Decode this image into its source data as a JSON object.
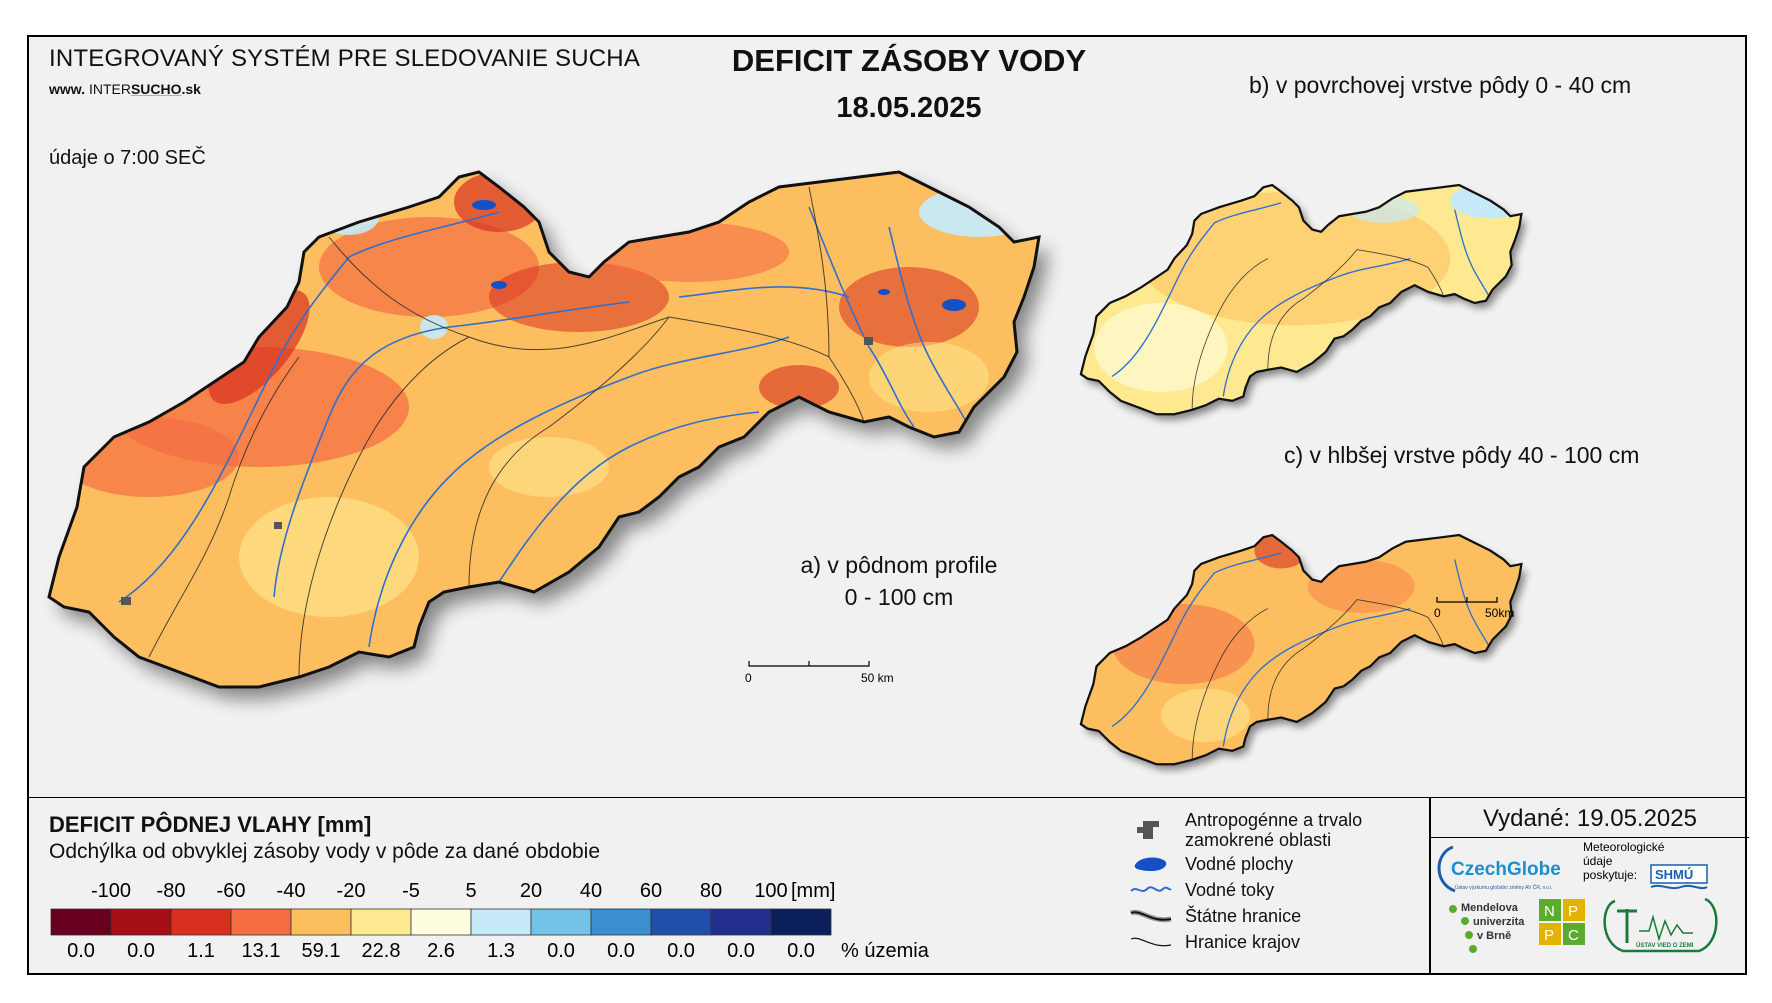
{
  "header": {
    "system_title": "INTEGROVANÝ SYSTÉM PRE SLEDOVANIE SUCHA",
    "website_prefix": "www.",
    "website_main": "INTER",
    "website_accent": "SUCHO",
    "website_suffix": ".sk",
    "time_note": "údaje o 7:00 SEČ",
    "main_title": "DEFICIT ZÁSOBY VODY",
    "date": "18.05.2025"
  },
  "panels": {
    "a_label_line1": "a) v pôdnom profile",
    "a_label_line2": "0 - 100 cm",
    "b_label": "b) v povrchovej vrstve pôdy 0 - 40 cm",
    "c_label": "c) v hlbšej vrstve pôdy 40 - 100 cm"
  },
  "scalebars": {
    "main": {
      "start": "0",
      "end": "50 km"
    },
    "small": {
      "start": "0",
      "end": "50km"
    }
  },
  "legend": {
    "title": "DEFICIT PÔDNEJ VLAHY [mm]",
    "subtitle": "Odchýlka od obvyklej zásoby vody v pôde za dané obdobie",
    "unit": "[mm]",
    "percent_label": "% územia",
    "breaks": [
      "-100",
      "-80",
      "-60",
      "-40",
      "-20",
      "-5",
      "5",
      "20",
      "40",
      "60",
      "80",
      "100"
    ],
    "classes": [
      {
        "color": "#67001f",
        "percent": "0.0"
      },
      {
        "color": "#a50f15",
        "percent": "0.0"
      },
      {
        "color": "#d7301f",
        "percent": "1.1"
      },
      {
        "color": "#f46d43",
        "percent": "13.1"
      },
      {
        "color": "#fdbe5e",
        "percent": "59.1"
      },
      {
        "color": "#fee991",
        "percent": "22.8"
      },
      {
        "color": "#fffde0",
        "percent": "2.6"
      },
      {
        "color": "#c6e9f7",
        "percent": "1.3"
      },
      {
        "color": "#74c3e6",
        "percent": "0.0"
      },
      {
        "color": "#3b8fd1",
        "percent": "0.0"
      },
      {
        "color": "#1f4fa8",
        "percent": "0.0"
      },
      {
        "color": "#232f8c",
        "percent": "0.0"
      },
      {
        "color": "#0b1f5c",
        "percent": "0.0"
      }
    ]
  },
  "symbols": [
    {
      "icon": "urban-area-icon",
      "label_line1": "Antropogénne a trvalo",
      "label_line2": "zamokrené oblasti"
    },
    {
      "icon": "water-body-icon",
      "label_line1": "Vodné plochy"
    },
    {
      "icon": "river-icon",
      "label_line1": "Vodné toky"
    },
    {
      "icon": "state-border-icon",
      "label_line1": "Štátne hranice"
    },
    {
      "icon": "region-border-icon",
      "label_line1": "Hranice krajov"
    }
  ],
  "issued": "Vydané: 19.05.2025",
  "logos": {
    "czechglobe": "CzechGlobe",
    "czechglobe_sub": "Ústav výzkumu globální změny AV ČR, v.v.i.",
    "meteo_line1": "Meteorologické",
    "meteo_line2": "údaje",
    "meteo_line3": "poskytuje:",
    "shmu": "SHMÚ",
    "mendel_line1": "Mendelova",
    "mendel_line2": "univerzita",
    "mendel_line3": "v Brně",
    "nppc": [
      "N",
      "P",
      "P",
      "C"
    ],
    "uvz": "ÚSTAV VIED O ZEMI"
  },
  "colors": {
    "map_dominant": "#fdbe5e",
    "map_dry": "#f46d43",
    "map_very_dry": "#d7301f",
    "map_moist": "#fee991",
    "map_wet": "#c6e9f7",
    "river": "#2f6fd0",
    "lake": "#1450c8"
  }
}
